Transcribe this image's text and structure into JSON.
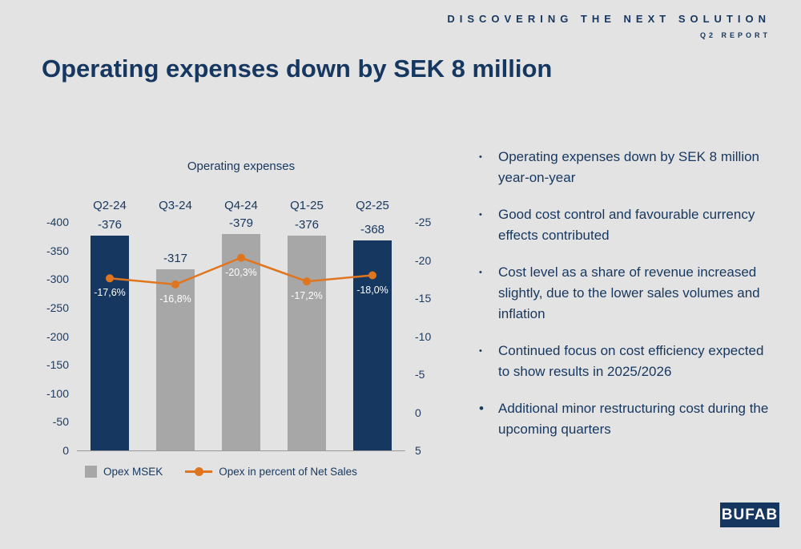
{
  "header": {
    "tagline": "DISCOVERING THE NEXT SOLUTION",
    "subtitle": "Q2 REPORT"
  },
  "title": "Operating expenses down by SEK 8 million",
  "bullets": {
    "char": "•",
    "items": [
      {
        "text": "Operating expenses down by SEK 8 million year-on-year"
      },
      {
        "text": "Good cost control and favourable currency effects contributed"
      },
      {
        "text": "Cost level as a share of revenue increased slightly, due to the lower sales volumes and inflation"
      },
      {
        "text": "Continued focus on cost efficiency expected to show results in 2025/2026"
      },
      {
        "text": "Additional minor restructuring cost during the upcoming quarters",
        "large_bullet": true
      }
    ]
  },
  "logo": {
    "text": "BUFAB"
  },
  "colors": {
    "background": "#e3e3e3",
    "navy": "#16375f",
    "bar_gray": "#a7a7a7",
    "orange": "#e0751f"
  },
  "chart_data": {
    "type": "bar",
    "title": "Operating expenses",
    "categories": [
      "Q2-24",
      "Q3-24",
      "Q4-24",
      "Q1-25",
      "Q2-25"
    ],
    "series": [
      {
        "name": "Opex MSEK",
        "type": "bar",
        "axis": "left",
        "values": [
          -376,
          -317,
          -379,
          -376,
          -368
        ],
        "labels": [
          "-376",
          "-317",
          "-379",
          "-376",
          "-368"
        ],
        "colors": [
          "#16375f",
          "#a7a7a7",
          "#a7a7a7",
          "#a7a7a7",
          "#16375f"
        ]
      },
      {
        "name": "Opex in percent of Net Sales",
        "type": "line",
        "axis": "right",
        "values": [
          -17.6,
          -16.8,
          -20.3,
          -17.2,
          -18.0
        ],
        "labels": [
          "-17,6%",
          "-16,8%",
          "-20,3%",
          "-17,2%",
          "-18,0%"
        ],
        "color": "#e0751f"
      }
    ],
    "left_axis": {
      "min": -400,
      "max": 0,
      "ticks": [
        -400,
        -350,
        -300,
        -250,
        -200,
        -150,
        -100,
        -50,
        0
      ],
      "inverted": true
    },
    "right_axis": {
      "min": -25,
      "max": 5,
      "ticks": [
        -25,
        -20,
        -15,
        -10,
        -5,
        0,
        5
      ],
      "inverted": true
    },
    "legend": [
      {
        "label": "Opex MSEK",
        "swatch": "square",
        "color": "#a7a7a7"
      },
      {
        "label": "Opex in percent of Net Sales",
        "swatch": "line-dot",
        "color": "#e0751f"
      }
    ],
    "grid": false,
    "legend_position": "bottom"
  }
}
